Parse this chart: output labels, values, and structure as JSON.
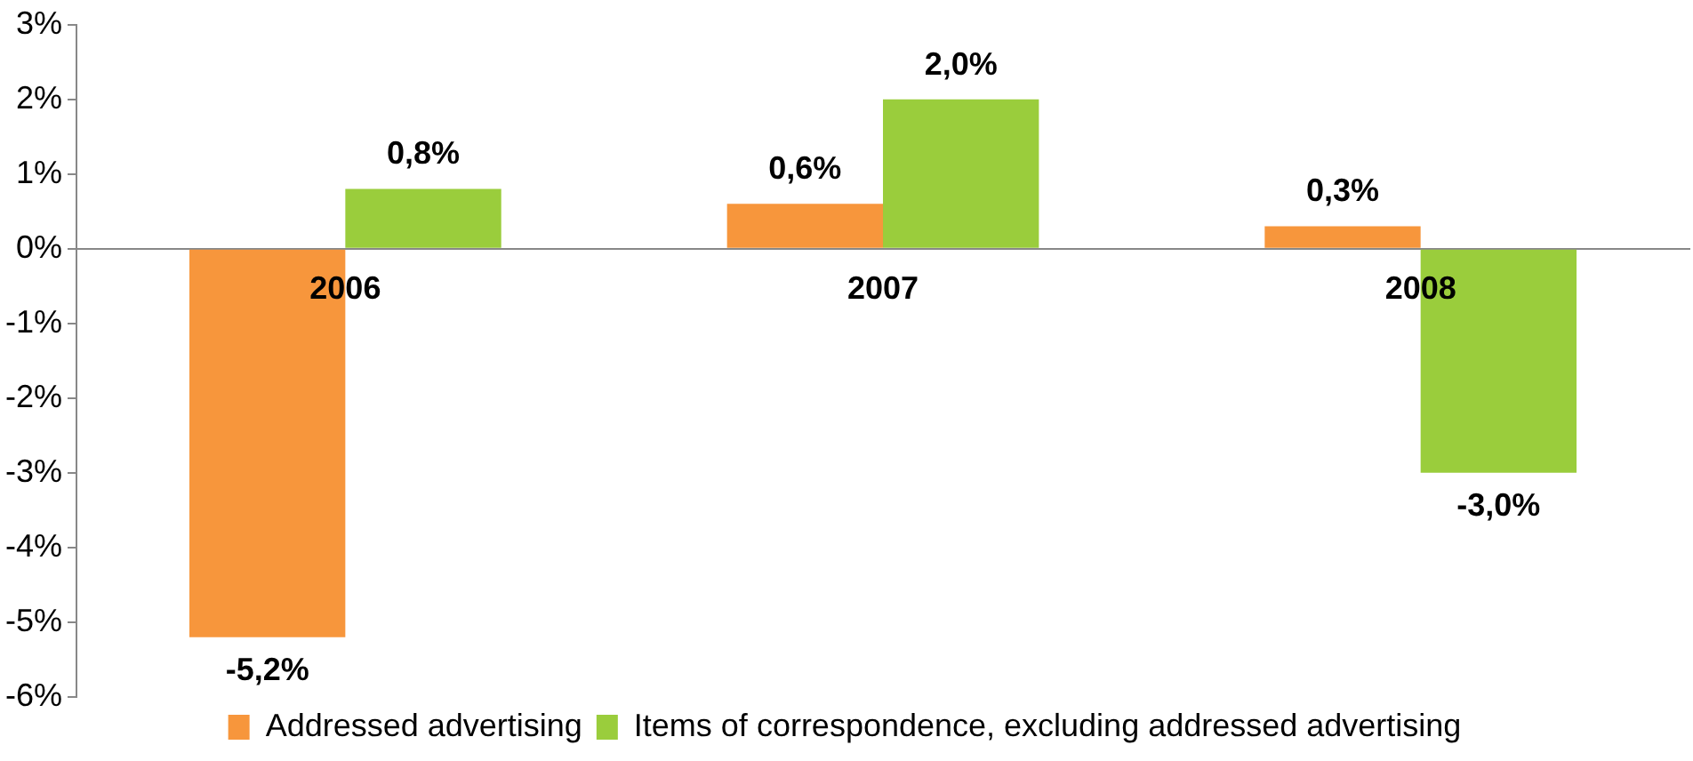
{
  "chart_data": {
    "type": "bar",
    "categories": [
      "2006",
      "2007",
      "2008"
    ],
    "series": [
      {
        "name": "Addressed advertising",
        "color": "#f7963c",
        "values": [
          -5.2,
          0.6,
          0.3
        ],
        "value_labels": [
          "-5,2%",
          "0,6%",
          "0,3%"
        ]
      },
      {
        "name": "Items of correspondence, excluding addressed advertising",
        "color": "#9acd3c",
        "values": [
          0.8,
          2.0,
          -3.0
        ],
        "value_labels": [
          "0,8%",
          "2,0%",
          "-3,0%"
        ]
      }
    ],
    "ylim": [
      -6,
      3
    ],
    "yticks": [
      {
        "value": 3,
        "label": "3%"
      },
      {
        "value": 2,
        "label": "2%"
      },
      {
        "value": 1,
        "label": "1%"
      },
      {
        "value": 0,
        "label": "0%"
      },
      {
        "value": -1,
        "label": "-1%"
      },
      {
        "value": -2,
        "label": "-2%"
      },
      {
        "value": -3,
        "label": "-3%"
      },
      {
        "value": -4,
        "label": "-4%"
      },
      {
        "value": -5,
        "label": "-5%"
      },
      {
        "value": -6,
        "label": "-6%"
      }
    ],
    "grid": false,
    "legend": "bottom"
  }
}
